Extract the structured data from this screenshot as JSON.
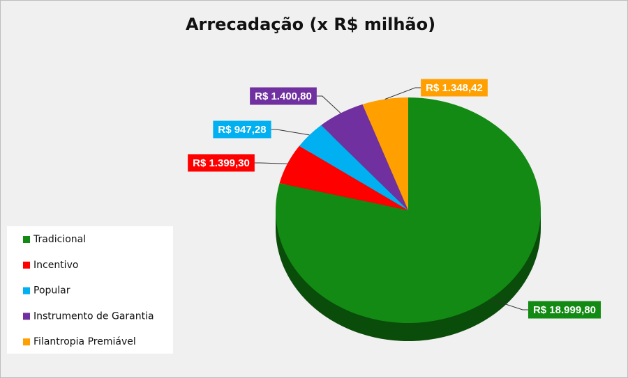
{
  "chart_data": {
    "type": "pie",
    "title": "Arrecadação (x R$ milhão)",
    "categories": [
      "Tradicional",
      "Incentivo",
      "Popular",
      "Instrumento de Garantia",
      "Filantropia Premiável"
    ],
    "values": [
      18999.8,
      1399.3,
      947.28,
      1400.8,
      1348.42
    ],
    "value_labels": [
      "R$ 18.999,80",
      "R$ 1.399,30",
      "R$ 947,28",
      "R$ 1.400,80",
      "R$ 1.348,42"
    ],
    "colors": [
      "#138a13",
      "#ff0000",
      "#00b0f0",
      "#7030a0",
      "#ffa000"
    ],
    "legend": "left"
  }
}
